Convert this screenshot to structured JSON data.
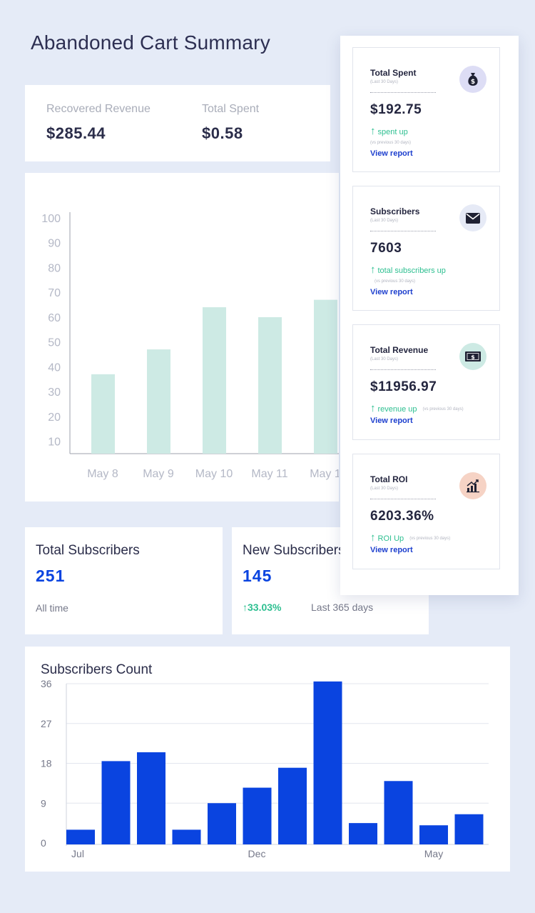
{
  "page": {
    "title": "Abandoned Cart Summary"
  },
  "summary": {
    "recovered_label": "Recovered Revenue",
    "recovered_value": "$285.44",
    "spent_label": "Total Spent",
    "spent_value": "$0.58"
  },
  "revenue_chart": {
    "chart_data": {
      "type": "bar",
      "categories": [
        "May 8",
        "May 9",
        "May 10",
        "May 11",
        "May 1"
      ],
      "values": [
        37,
        47,
        64,
        60,
        67
      ],
      "ylim": [
        5,
        100
      ],
      "yticks": [
        10,
        20,
        30,
        40,
        50,
        60,
        70,
        80,
        90,
        100
      ],
      "grid": false
    },
    "color": "#cdeae4"
  },
  "total_subscribers": {
    "title": "Total Subscribers",
    "value": "251",
    "sub": "All time"
  },
  "new_subscribers": {
    "title": "New Subscribers",
    "value": "145",
    "growth": "33.03%",
    "period": "Last 365 days"
  },
  "subscribers_count": {
    "title": "Subscribers Count",
    "chart_data": {
      "type": "bar",
      "tick_labels": [
        "Jul",
        "Dec",
        "May"
      ],
      "values": [
        3,
        18.5,
        20.5,
        3,
        9,
        12.5,
        17,
        36.5,
        4.5,
        14,
        4,
        6.5
      ],
      "ylim": [
        0,
        36
      ],
      "yticks": [
        0,
        9,
        18,
        27,
        36
      ],
      "grid": true
    },
    "color": "#0a44e0"
  },
  "side_panel": {
    "cards": [
      {
        "title": "Total Spent",
        "period": "(Last 30 Days)",
        "value": "$192.75",
        "trend": "spent up",
        "compare": "(vs previous 30 days)",
        "link": "View report",
        "icon": "money-bag-icon",
        "icon_bg": "#ddddf5"
      },
      {
        "title": "Subscribers",
        "period": "(Last 30 Days)",
        "value": "7603",
        "trend": "total subscribers up",
        "compare": "(vs previous 30 days)",
        "link": "View report",
        "icon": "envelope-icon",
        "icon_bg": "#e6eaf6"
      },
      {
        "title": "Total Revenue",
        "period": "(Last 30 Days)",
        "value": "$11956.97",
        "trend": "revenue up",
        "compare": "(vs previous 30 days)",
        "link": "View report",
        "icon": "banknote-icon",
        "icon_bg": "#cdeae4"
      },
      {
        "title": "Total ROI",
        "period": "(Last 30 Days)",
        "value": "6203.36%",
        "trend": "ROI Up",
        "compare": "(vs previous 30 days)",
        "link": "View report",
        "icon": "growth-chart-icon",
        "icon_bg": "#f6d3c5"
      }
    ]
  }
}
